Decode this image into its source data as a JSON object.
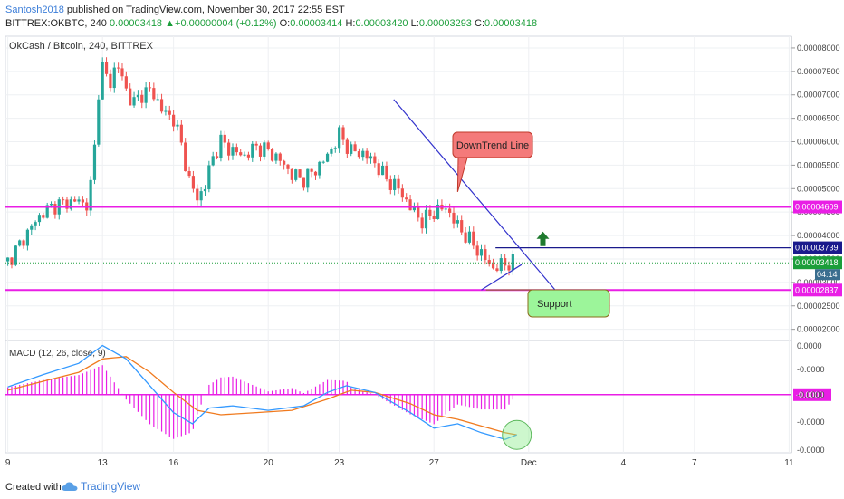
{
  "header": {
    "author": "Santosh2018",
    "published_text": "published on TradingView.com, November 30, 2017 22:55 EST",
    "symbol": "BITTREX:OKBTC, 240",
    "price": "0.00003418",
    "change": "+0.00000004 (+0.12%)",
    "o_label": "O:",
    "o_value": "0.00003414",
    "h_label": "H:",
    "h_value": "0.00003420",
    "l_label": "L:",
    "l_value": "0.00003293",
    "c_label": "C:",
    "c_value": "0.00003418"
  },
  "footer": {
    "created_with": "Created with",
    "brand": "TradingView",
    "logo_icon": "tradingview-cloud-icon"
  },
  "chart_data": {
    "type": "candlestick",
    "title": "OkCash / Bitcoin, 240, BITTREX",
    "y_ticks": [
      "0.00008000",
      "0.00007500",
      "0.00007000",
      "0.00006500",
      "0.00006000",
      "0.00005500",
      "0.00005000",
      "0.00004500",
      "0.00004000",
      "0.00003500",
      "0.00003000",
      "0.00002500",
      "0.00002000"
    ],
    "y_range": [
      1.8e-05,
      8.25e-05
    ],
    "x_ticks": [
      {
        "label": "9",
        "day": 9
      },
      {
        "label": "13",
        "day": 13
      },
      {
        "label": "16",
        "day": 16
      },
      {
        "label": "20",
        "day": 20
      },
      {
        "label": "23",
        "day": 23
      },
      {
        "label": "27",
        "day": 27
      },
      {
        "label": "Dec",
        "day": 31
      },
      {
        "label": "4",
        "day": 35
      },
      {
        "label": "7",
        "day": 38
      },
      {
        "label": "11",
        "day": 42
      }
    ],
    "x_range_days": [
      8.9,
      42.1
    ],
    "price_series": [
      [
        9.0,
        3.45e-05
      ],
      [
        9.5,
        3.8e-05
      ],
      [
        10.0,
        4.2e-05
      ],
      [
        10.5,
        4.5e-05
      ],
      [
        11.0,
        4.65e-05
      ],
      [
        11.5,
        4.7e-05
      ],
      [
        12.0,
        4.75e-05
      ],
      [
        12.3,
        4.6e-05
      ],
      [
        12.6,
        5.3e-05
      ],
      [
        12.8,
        7e-05
      ],
      [
        13.0,
        7.6e-05
      ],
      [
        13.3,
        7.2e-05
      ],
      [
        13.6,
        7.7e-05
      ],
      [
        14.0,
        7.1e-05
      ],
      [
        14.3,
        6.8e-05
      ],
      [
        14.6,
        7e-05
      ],
      [
        15.0,
        7.1e-05
      ],
      [
        15.3,
        6.9e-05
      ],
      [
        15.6,
        6.6e-05
      ],
      [
        16.0,
        6.5e-05
      ],
      [
        16.3,
        6e-05
      ],
      [
        16.7,
        5.1e-05
      ],
      [
        17.0,
        4.8e-05
      ],
      [
        17.3,
        5e-05
      ],
      [
        17.6,
        5.6e-05
      ],
      [
        18.0,
        6e-05
      ],
      [
        18.5,
        5.8e-05
      ],
      [
        19.0,
        5.7e-05
      ],
      [
        19.5,
        5.9e-05
      ],
      [
        20.0,
        5.8e-05
      ],
      [
        20.5,
        5.6e-05
      ],
      [
        21.0,
        5.3e-05
      ],
      [
        21.5,
        5.2e-05
      ],
      [
        22.0,
        5.4e-05
      ],
      [
        22.5,
        5.7e-05
      ],
      [
        23.0,
        6.15e-05
      ],
      [
        23.5,
        5.8e-05
      ],
      [
        24.0,
        5.75e-05
      ],
      [
        24.5,
        5.55e-05
      ],
      [
        25.0,
        5.2e-05
      ],
      [
        25.5,
        5e-05
      ],
      [
        26.0,
        4.6e-05
      ],
      [
        26.5,
        4.3e-05
      ],
      [
        27.0,
        4.5e-05
      ],
      [
        27.5,
        4.6e-05
      ],
      [
        28.0,
        4.2e-05
      ],
      [
        28.5,
        3.9e-05
      ],
      [
        29.0,
        3.6e-05
      ],
      [
        29.5,
        3.3e-05
      ],
      [
        30.0,
        3.4e-05
      ],
      [
        30.5,
        3.42e-05
      ]
    ],
    "horizontal_lines": [
      {
        "value": 4.609e-05,
        "label": "0.00004609",
        "color": "#e91ee5"
      },
      {
        "value": 2.837e-05,
        "label": "0.00002837",
        "color": "#e91ee5"
      }
    ],
    "resistance_line": {
      "value": 3.739e-05,
      "label": "0.00003739",
      "from_day": 29.6,
      "color": "#1a1a8c"
    },
    "current_price": {
      "value": 3.418e-05,
      "label": "0.00003418",
      "countdown": "04:14",
      "color": "#1b9e3a"
    },
    "downtrend_line": {
      "from": [
        25.3,
        6.9e-05
      ],
      "to": [
        32.1,
        2.85e-05
      ],
      "color": "#3333cc"
    },
    "support_line": {
      "from": [
        29.0,
        2.84e-05
      ],
      "to": [
        30.7,
        3.38e-05
      ],
      "color": "#3333cc"
    },
    "annotations": [
      {
        "text": "DownTrend Line",
        "kind": "callout",
        "color": "#f47a7a",
        "border": "#c0392b",
        "anchor": [
          28.0,
          4.93e-05
        ]
      },
      {
        "text": "Support",
        "kind": "callout",
        "color": "#9cf59a",
        "border": "#8a6d1a",
        "anchor": [
          29.2,
          2.84e-05
        ]
      }
    ],
    "arrow_up": {
      "day": 31.6,
      "value": 3.93e-05,
      "color": "#1f7a2e"
    },
    "macd": {
      "label": "MACD (12, 26, close, 9)",
      "zero_label": "-0.0000",
      "y_ticks": [
        "0.0000",
        "-0.0000",
        "-0.0000",
        "-0.0000",
        "-0.0000"
      ],
      "macd_color": "#3399ff",
      "signal_color": "#f07a1e",
      "hist_color": "#e91ee5",
      "macd_line": [
        [
          9.0,
          0.35
        ],
        [
          10.5,
          0.9
        ],
        [
          12.0,
          1.4
        ],
        [
          13.0,
          2.2
        ],
        [
          14.0,
          1.6
        ],
        [
          15.0,
          0.4
        ],
        [
          16.0,
          -0.8
        ],
        [
          16.8,
          -1.3
        ],
        [
          17.5,
          -0.6
        ],
        [
          18.5,
          -0.5
        ],
        [
          20.0,
          -0.7
        ],
        [
          21.5,
          -0.5
        ],
        [
          22.5,
          0.1
        ],
        [
          23.3,
          0.4
        ],
        [
          24.5,
          0.1
        ],
        [
          26.0,
          -0.8
        ],
        [
          27.0,
          -1.5
        ],
        [
          28.0,
          -1.3
        ],
        [
          29.0,
          -1.7
        ],
        [
          30.0,
          -2.0
        ],
        [
          30.5,
          -1.8
        ]
      ],
      "signal_line": [
        [
          9.0,
          0.2
        ],
        [
          10.5,
          0.6
        ],
        [
          12.0,
          1.0
        ],
        [
          13.0,
          1.6
        ],
        [
          14.0,
          1.7
        ],
        [
          15.0,
          1.0
        ],
        [
          16.0,
          0.1
        ],
        [
          17.0,
          -0.7
        ],
        [
          18.0,
          -0.9
        ],
        [
          19.5,
          -0.8
        ],
        [
          21.0,
          -0.7
        ],
        [
          22.5,
          -0.2
        ],
        [
          23.5,
          0.2
        ],
        [
          24.5,
          0.1
        ],
        [
          26.0,
          -0.4
        ],
        [
          27.0,
          -0.9
        ],
        [
          28.0,
          -1.1
        ],
        [
          29.0,
          -1.4
        ],
        [
          30.0,
          -1.7
        ],
        [
          30.5,
          -1.8
        ]
      ],
      "y_range": [
        -2.6,
        2.3
      ]
    }
  }
}
